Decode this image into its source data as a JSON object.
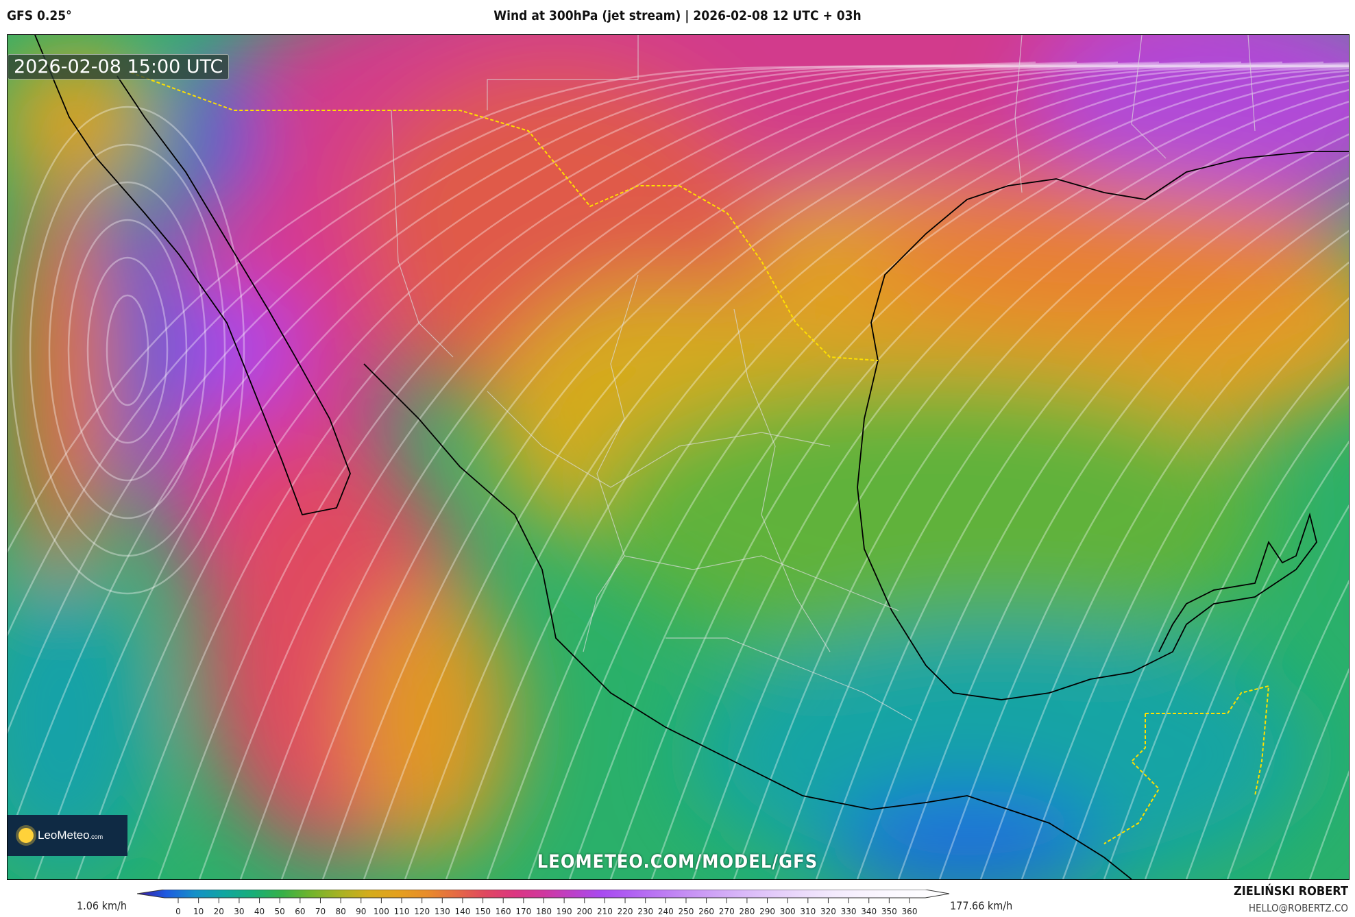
{
  "header": {
    "model": "GFS 0.25°",
    "title": "Wind at 300hPa (jet stream) | 2026-02-08 12 UTC + 03h"
  },
  "map": {
    "valid_time": "2026-02-08 15:00 UTC",
    "region": "Mexico",
    "watermark": "LEOMETEO.COM/MODEL/GFS",
    "logo_text": "LeoMeteo",
    "logo_suffix": ".com"
  },
  "legend": {
    "min_label": "1.06 km/h",
    "max_label": "177.66 km/h",
    "ticks": [
      "0",
      "10",
      "20",
      "30",
      "40",
      "50",
      "60",
      "70",
      "80",
      "90",
      "100",
      "110",
      "120",
      "130",
      "140",
      "150",
      "160",
      "170",
      "180",
      "190",
      "200",
      "210",
      "220",
      "230",
      "240",
      "250",
      "260",
      "270",
      "280",
      "290",
      "300",
      "310",
      "320",
      "330",
      "340",
      "350",
      "360"
    ],
    "colors": [
      "#3b1aa0",
      "#1d5ae0",
      "#1590c8",
      "#10a6a0",
      "#18ae78",
      "#36b048",
      "#72b42c",
      "#a8b222",
      "#d4ac1c",
      "#e4a01e",
      "#e88c2a",
      "#e56a44",
      "#e04860",
      "#dc3680",
      "#d0389e",
      "#bc40c8",
      "#a84af0",
      "#b060f2",
      "#bb78f3",
      "#c690f4",
      "#d0a6f6",
      "#dabaf8",
      "#e4ccfa",
      "#ecdcfb",
      "#f3eafd",
      "#f8f2fe",
      "#fbf8ff",
      "#fdfcff",
      "#ffffff"
    ]
  },
  "footer": {
    "author": "ZIELIŃSKI ROBERT",
    "email": "HELLO@ROBERTZ.CO"
  }
}
